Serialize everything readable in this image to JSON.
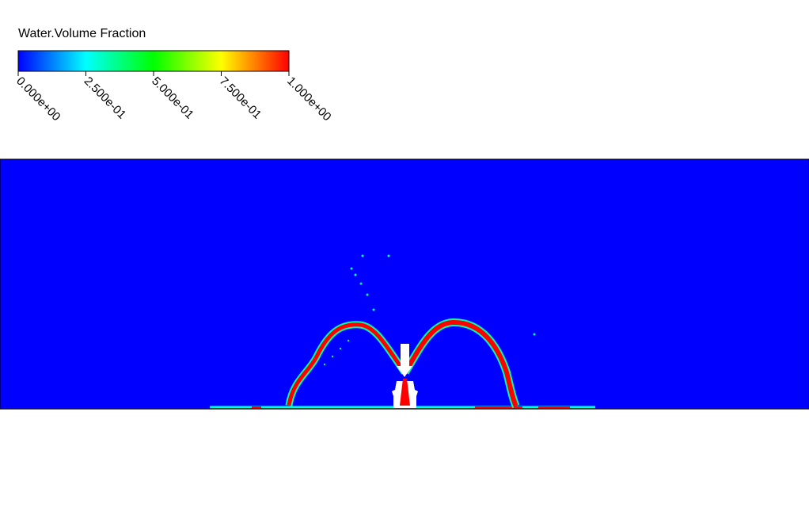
{
  "chart_data": {
    "type": "heatmap",
    "title": "Water.Volume Fraction",
    "colorbar": {
      "range": [
        0,
        1
      ],
      "tick_labels": [
        "0.000e+00",
        "2.500e-01",
        "5.000e-01",
        "7.500e-01",
        "1.000e+00"
      ],
      "tick_values": [
        0,
        0.25,
        0.5,
        0.75,
        1
      ],
      "colormap": [
        "#0000ff",
        "#00ffff",
        "#00ff00",
        "#ffff00",
        "#ff0000"
      ]
    },
    "background_value": 0,
    "background_color": "#0000ff",
    "liquid_color": "#ff0000",
    "interface_color": "#00ffcc",
    "solid_color": "#ffffff"
  }
}
